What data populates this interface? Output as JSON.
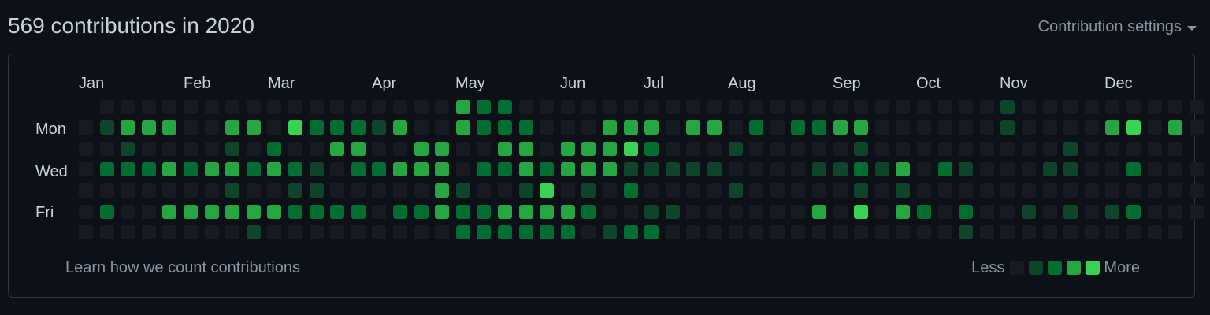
{
  "header": {
    "title": "569 contributions in 2020",
    "settings_label": "Contribution settings"
  },
  "calendar": {
    "months": [
      "Jan",
      "Feb",
      "Mar",
      "Apr",
      "May",
      "Jun",
      "Jul",
      "Aug",
      "Sep",
      "Oct",
      "Nov",
      "Dec"
    ],
    "day_labels": [
      "Mon",
      "Wed",
      "Fri"
    ],
    "colors": [
      "#161b22",
      "#0e4429",
      "#006d32",
      "#26a641",
      "#39d353"
    ],
    "levels": [
      "-00000000000000000322000000000000000000000001000000000",
      "0133300330422213003222000333033020223300000010000340304",
      "00100001020033003300330333420001000001000000000100000",
      "0222323323210223330223233311111000011213021000110020000",
      "0000000100110000031001401020000100000101000000000000000",
      "0200333333222202232233332001100000030403202001010120000",
      "00000000100000000022222201220000000000000010000000000"
    ]
  },
  "footer": {
    "learn_link": "Learn how we count contributions",
    "legend_less": "Less",
    "legend_more": "More"
  }
}
